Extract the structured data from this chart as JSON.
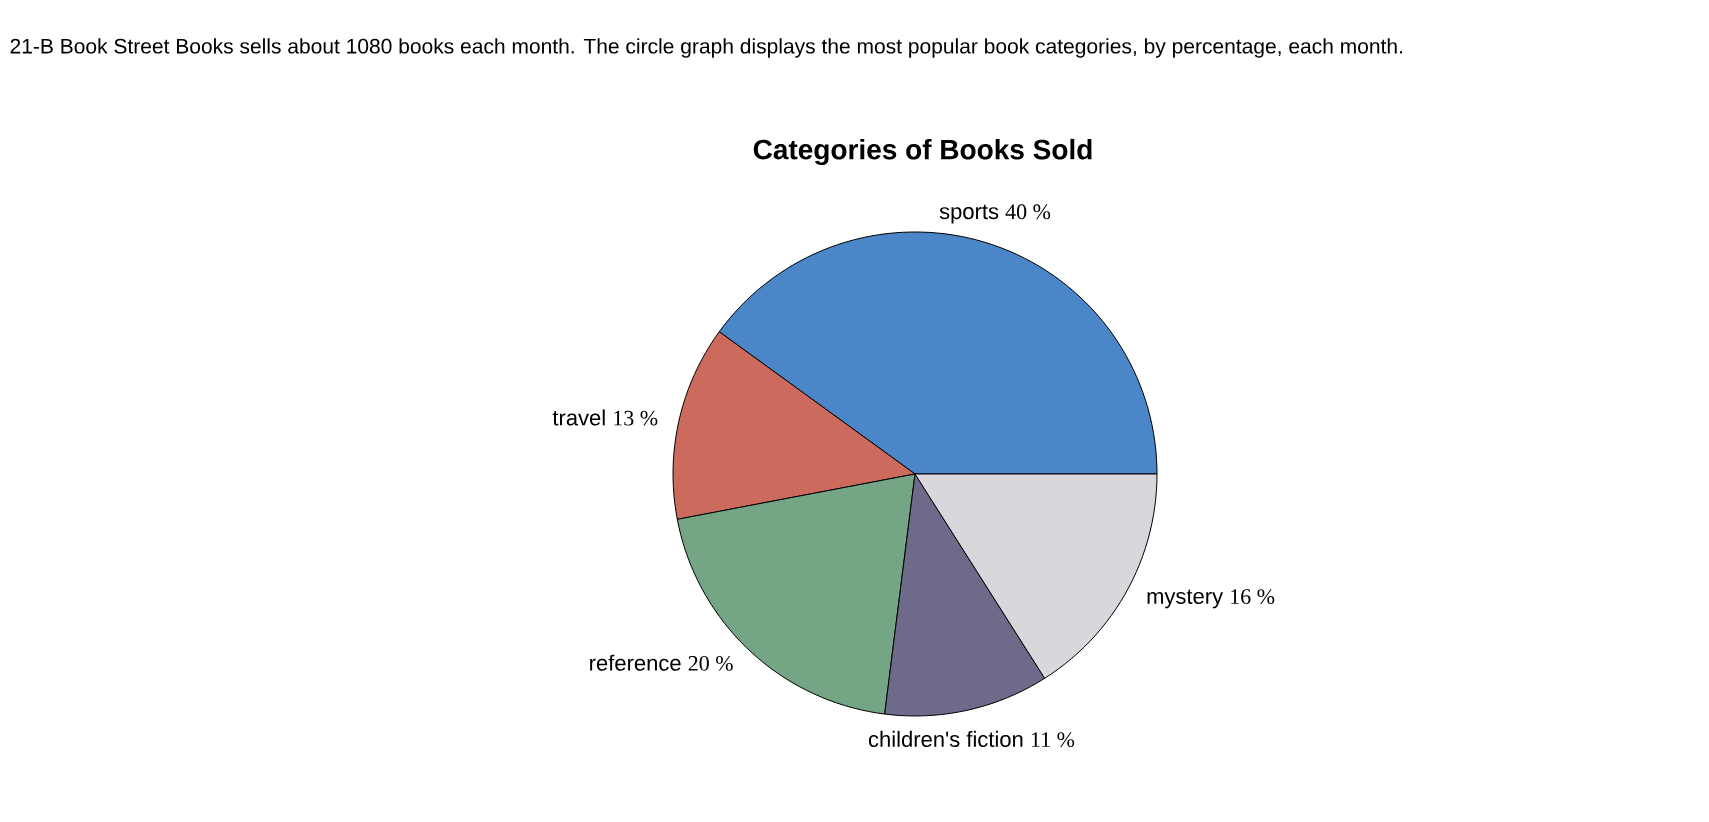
{
  "chart_data": {
    "type": "pie",
    "title": "Categories of Books Sold",
    "subtitle": "21-B Book Street Books sells about 1080 books each month. The circle graph displays the most popular book categories, by percentage, each month.",
    "categories": [
      "sports",
      "travel",
      "reference",
      "children's fiction",
      "mystery"
    ],
    "values": [
      40,
      13,
      20,
      11,
      16
    ],
    "colors": [
      "#4a86c8",
      "#cd6a5e",
      "#74a585",
      "#6e6a8a",
      "#d8d8dc"
    ],
    "value_labels": [
      "40 %",
      "13 %",
      "20 %",
      "11 %",
      "16 %"
    ]
  }
}
